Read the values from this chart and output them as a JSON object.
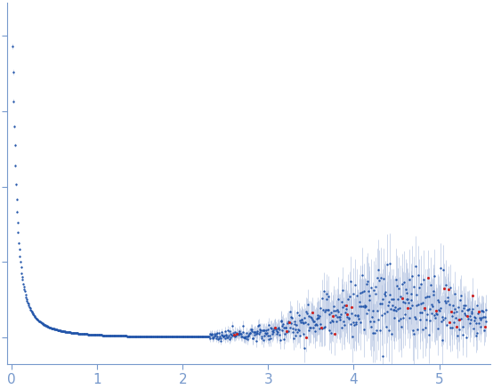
{
  "title": "",
  "xlabel": "",
  "ylabel": "",
  "xlim": [
    -0.05,
    5.6
  ],
  "dot_color": "#2255aa",
  "error_color": "#aabbdd",
  "outlier_color": "#cc2222",
  "dot_size": 3,
  "outlier_size": 5,
  "background_color": "#ffffff",
  "axis_color": "#7799cc",
  "tick_color": "#7799cc",
  "xticks": [
    0,
    1,
    2,
    3,
    4,
    5
  ],
  "seed": 12345
}
